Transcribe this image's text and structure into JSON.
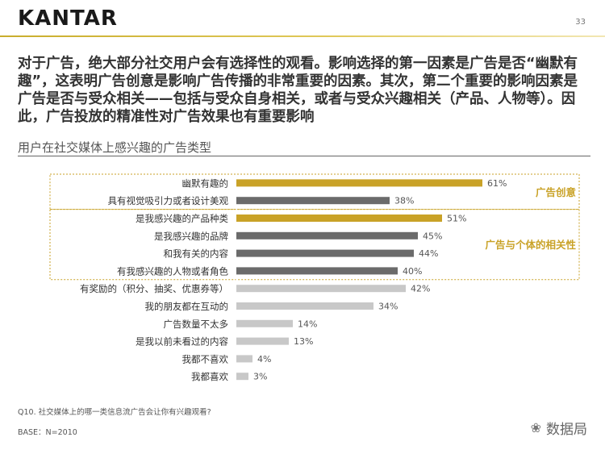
{
  "header": {
    "logo": "KANTAR",
    "page_number": "33"
  },
  "headline": "对于广告，绝大部分社交用户会有选择性的观看。影响选择的第一因素是广告是否“幽默有趣”，这表明广告创意是影响广告传播的非常重要的因素。其次，第二个重要的影响因素是广告是否与受众相关——包括与受众自身相关，或者与受众兴趣相关（产品、人物等）。因此，广告投放的精准性对广告效果也有重要影响",
  "colors": {
    "gold": "#c9a227",
    "dark_gray": "#6b6b6b",
    "light_gray": "#c8c8c8",
    "box_line": "#c9a227"
  },
  "chart_data": {
    "type": "bar",
    "orientation": "horizontal",
    "title": "用户在社交媒体上感兴趣的广告类型",
    "categories": [
      "幽默有趣的",
      "具有视觉吸引力或者设计美观",
      "是我感兴趣的产品种类",
      "是我感兴趣的品牌",
      "和我有关的内容",
      "有我感兴趣的人物或者角色",
      "有奖励的（积分、抽奖、优惠券等）",
      "我的朋友都在互动的",
      "广告数量不太多",
      "是我以前未看过的内容",
      "我都不喜欢",
      "我都喜欢"
    ],
    "values": [
      61,
      38,
      51,
      45,
      44,
      40,
      42,
      34,
      14,
      13,
      4,
      3
    ],
    "value_labels": [
      "61%",
      "38%",
      "51%",
      "45%",
      "44%",
      "40%",
      "42%",
      "34%",
      "14%",
      "13%",
      "4%",
      "3%"
    ],
    "bar_colors": [
      "gold",
      "dark",
      "gold",
      "dark",
      "dark",
      "dark",
      "light",
      "light",
      "light",
      "light",
      "light",
      "light"
    ],
    "groups": [
      {
        "label": "广告创意",
        "rows": [
          0,
          1
        ]
      },
      {
        "label": "广告与个体的相关性",
        "rows": [
          2,
          5
        ]
      }
    ],
    "xlim": [
      0,
      100
    ]
  },
  "footer": {
    "question": "Q10. 社交媒体上的哪一类信息流广告会让你有兴趣观看?",
    "base": "BASE：N=2010",
    "watermark": "数据局"
  }
}
